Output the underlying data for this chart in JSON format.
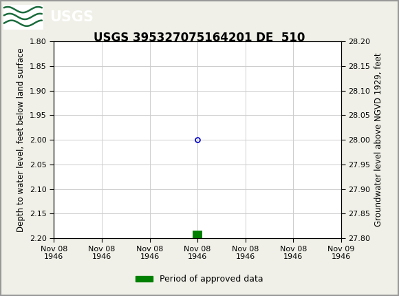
{
  "title": "USGS 395327075164201 DE  510",
  "ylabel_left": "Depth to water level, feet below land surface",
  "ylabel_right": "Groundwater level above NGVD 1929, feet",
  "ylim_left": [
    2.2,
    1.8
  ],
  "ylim_right": [
    27.8,
    28.2
  ],
  "yticks_left": [
    1.8,
    1.85,
    1.9,
    1.95,
    2.0,
    2.05,
    2.1,
    2.15,
    2.2
  ],
  "yticks_right": [
    28.2,
    28.15,
    28.1,
    28.05,
    28.0,
    27.95,
    27.9,
    27.85,
    27.8
  ],
  "data_point_x": 12,
  "data_point_y": 2.0,
  "bar_x": 12,
  "bar_y": 2.185,
  "bar_height": 0.015,
  "bar_width": 0.8,
  "header_color": "#1a6b3c",
  "grid_color": "#cccccc",
  "bg_color": "#f0f0e8",
  "point_color": "#0000cc",
  "bar_color": "#008000",
  "legend_label": "Period of approved data",
  "mono_font": "Courier New",
  "title_fontsize": 12,
  "axis_label_fontsize": 8.5,
  "tick_fontsize": 8,
  "legend_fontsize": 9,
  "xtick_positions": [
    0,
    4,
    8,
    12,
    16,
    20,
    24
  ],
  "xtick_labels": [
    "Nov 08\n1946",
    "Nov 08\n1946",
    "Nov 08\n1946",
    "Nov 08\n1946",
    "Nov 08\n1946",
    "Nov 08\n1946",
    "Nov 09\n1946"
  ],
  "xlim": [
    0,
    24
  ],
  "outer_border_color": "#999999"
}
